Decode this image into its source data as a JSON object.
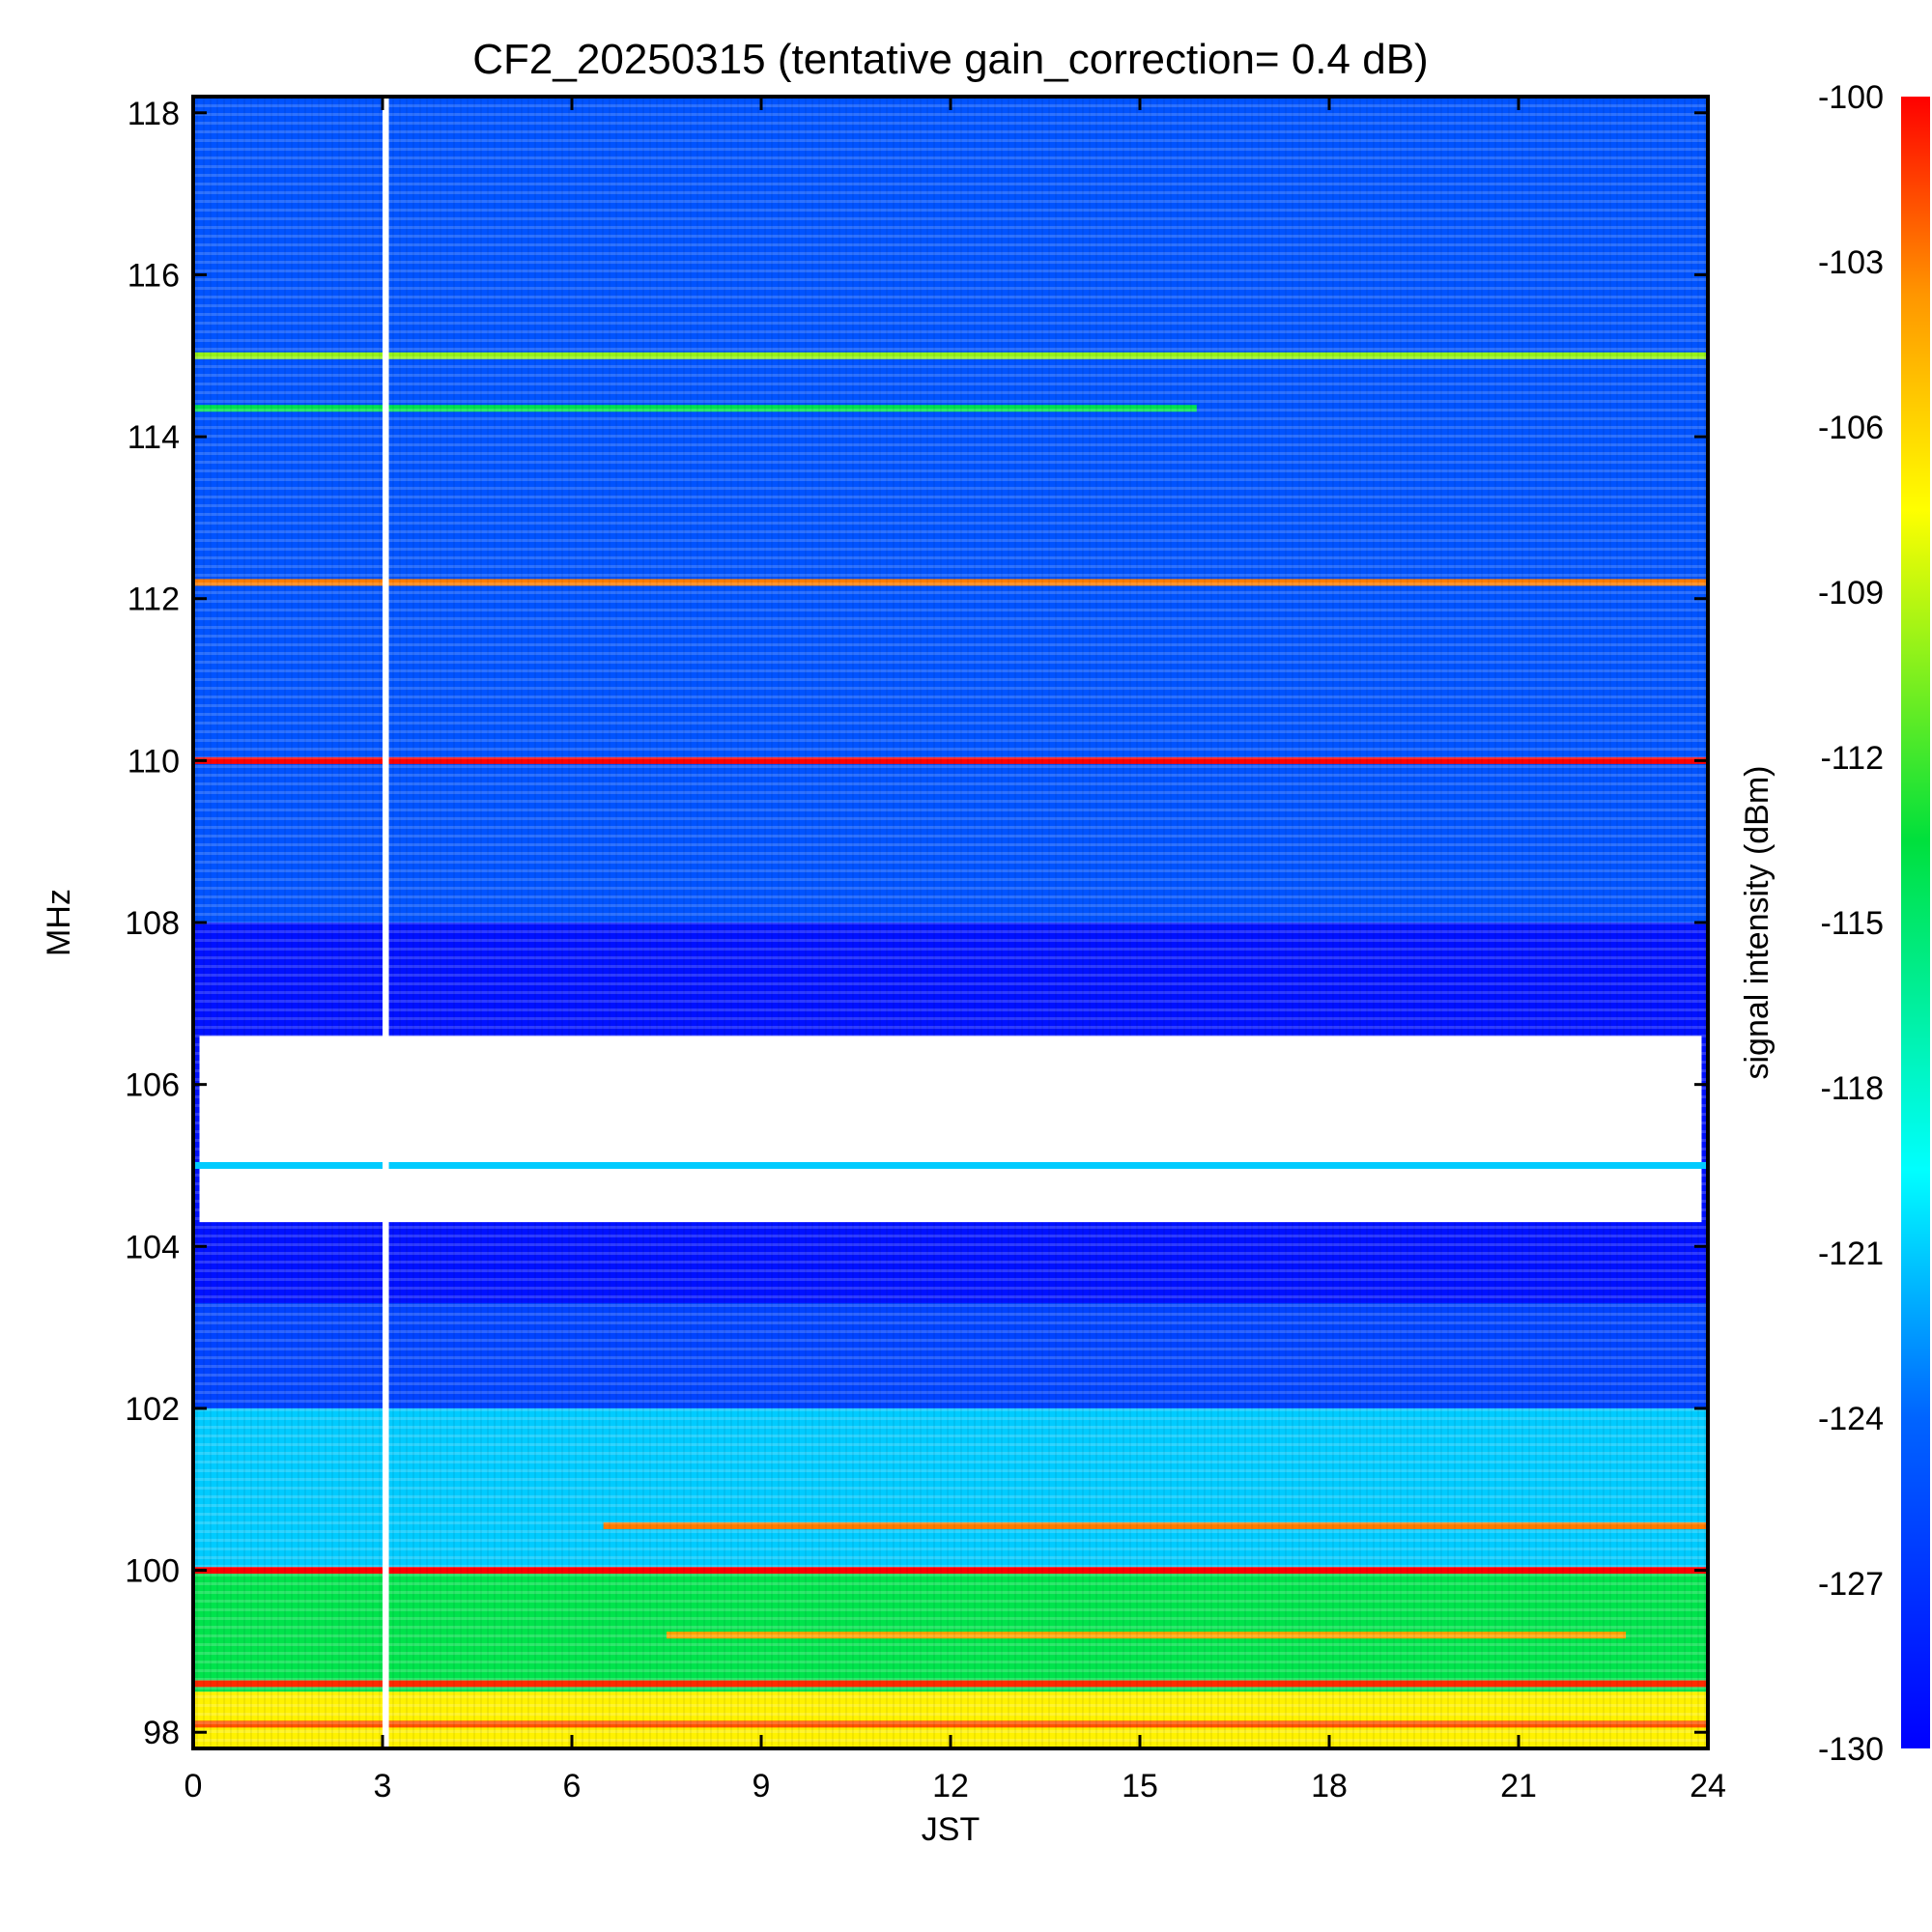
{
  "chart_data": {
    "type": "heatmap",
    "title": "CF2_20250315 (tentative gain_correction=  0.4 dB)",
    "xlabel": "JST",
    "ylabel": "MHz",
    "colorbar_label": "signal intensity (dBm)",
    "xlim": [
      0,
      24
    ],
    "ylim": [
      97.8,
      118.2
    ],
    "zlim": [
      -130,
      -100
    ],
    "x_ticks": [
      0,
      3,
      6,
      9,
      12,
      15,
      18,
      21,
      24
    ],
    "x_tick_labels": [
      "0",
      "3",
      "6",
      "9",
      "12",
      "15",
      "18",
      "21",
      "24"
    ],
    "y_ticks": [
      98,
      100,
      102,
      104,
      106,
      108,
      110,
      112,
      114,
      116,
      118
    ],
    "y_tick_labels": [
      "98",
      "100",
      "102",
      "104",
      "106",
      "108",
      "110",
      "112",
      "114",
      "116",
      "118"
    ],
    "colorbar_ticks": [
      -100,
      -103,
      -106,
      -109,
      -112,
      -115,
      -118,
      -121,
      -124,
      -127,
      -130
    ],
    "colorbar_tick_labels": [
      "-100",
      "-103",
      "-106",
      "-109",
      "-112",
      "-115",
      "-118",
      "-121",
      "-124",
      "-127",
      "-130"
    ],
    "colormap": "rainbow (blue=-130 dBm to red=-100 dBm)",
    "data_gap": {
      "x_range": [
        3.0,
        3.1
      ],
      "description": "white vertical gap"
    },
    "background_gradient": [
      {
        "freq_range": [
          108.0,
          118.2
        ],
        "level_dbm": -125
      },
      {
        "freq_range": [
          103.3,
          108.0
        ],
        "level_dbm": -129
      },
      {
        "freq_range": [
          102.0,
          103.3
        ],
        "level_dbm": -126
      },
      {
        "freq_range": [
          100.0,
          102.0
        ],
        "level_dbm": -121
      },
      {
        "freq_range": [
          98.5,
          100.0
        ],
        "level_dbm": -114
      },
      {
        "freq_range": [
          97.8,
          98.5
        ],
        "level_dbm": -107
      }
    ],
    "bands": [
      {
        "label": "110.0 MHz",
        "freq": 110.0,
        "x_range": [
          0,
          24
        ],
        "level_dbm": -100
      },
      {
        "label": "112.2 MHz",
        "freq": 112.2,
        "x_range": [
          0,
          24
        ],
        "level_dbm": -103
      },
      {
        "label": "115.0 MHz",
        "freq": 115.0,
        "x_range": [
          0,
          24
        ],
        "level_dbm": -110
      },
      {
        "label": "114.4 MHz",
        "freq": 114.35,
        "x_range": [
          0,
          15.9
        ],
        "level_dbm": -114
      },
      {
        "label": "100.0 MHz",
        "freq": 100.0,
        "x_range": [
          0,
          24
        ],
        "level_dbm": -100
      },
      {
        "label": "105.0 MHz",
        "freq": 105.0,
        "x_range": [
          0,
          24
        ],
        "level_dbm": -121
      },
      {
        "label": "98.6 MHz",
        "freq": 98.6,
        "x_range": [
          0,
          24
        ],
        "level_dbm": -101
      },
      {
        "label": "99.2 MHz",
        "freq": 99.2,
        "x_range": [
          7.5,
          22.7
        ],
        "level_dbm": -104
      },
      {
        "label": "100.5 MHz",
        "freq": 100.55,
        "x_range": [
          6.5,
          24
        ],
        "level_dbm": -103
      },
      {
        "label": "98.1 MHz",
        "freq": 98.1,
        "x_range": [
          0,
          24
        ],
        "level_dbm": -102
      }
    ],
    "white_regions": [
      {
        "freq_range": [
          104.3,
          106.6
        ],
        "x_range": [
          0.1,
          23.9
        ],
        "description": "saturated / no-data region"
      }
    ]
  }
}
